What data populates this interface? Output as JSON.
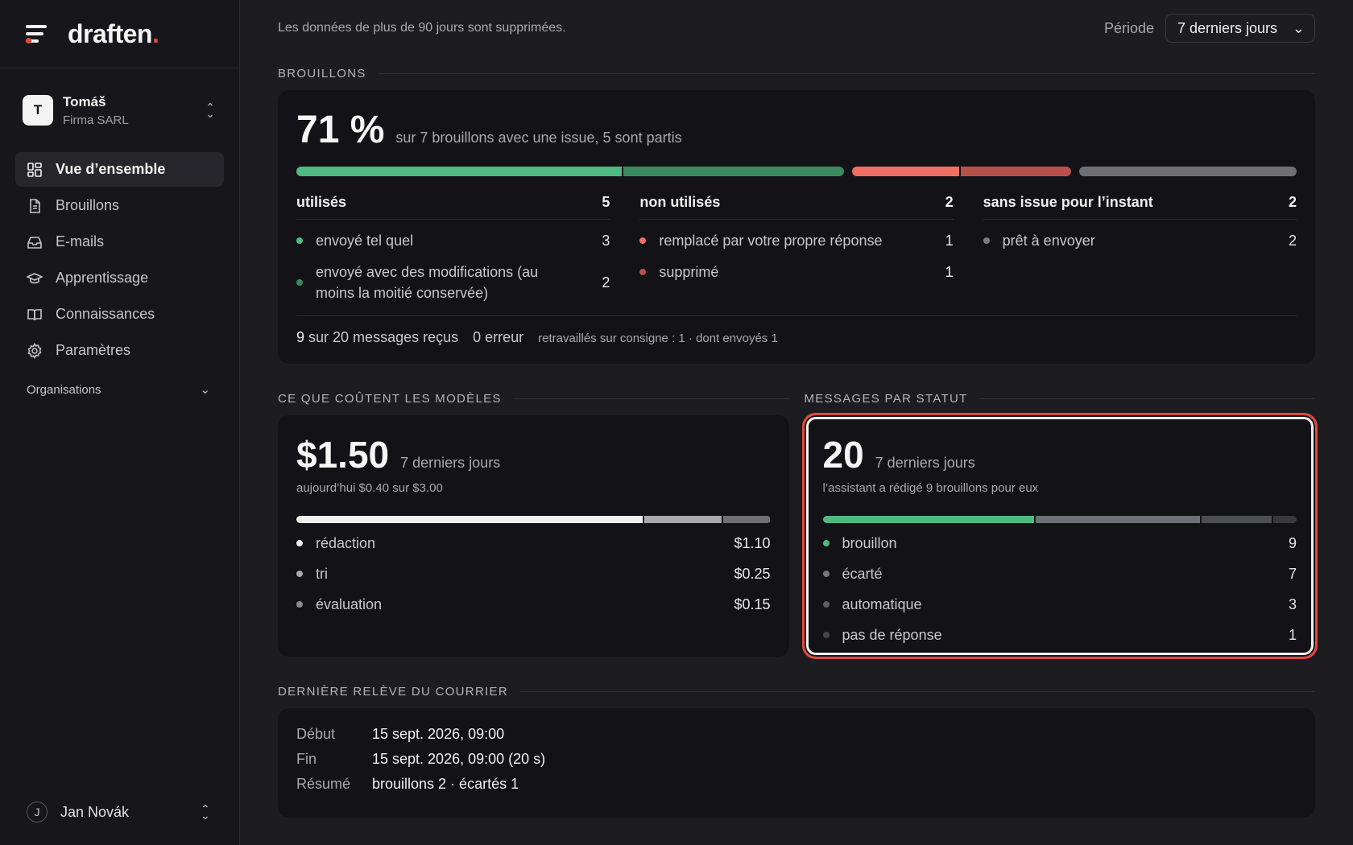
{
  "brand": {
    "name": "draften",
    "dot": "."
  },
  "account": {
    "initial": "T",
    "name": "Tomáš",
    "org": "Firma SARL"
  },
  "nav": [
    {
      "label": "Vue d’ensemble",
      "icon": "dashboard-icon",
      "active": true
    },
    {
      "label": "Brouillons",
      "icon": "document-icon"
    },
    {
      "label": "E-mails",
      "icon": "inbox-icon"
    },
    {
      "label": "Apprentissage",
      "icon": "graduation-cap-icon"
    },
    {
      "label": "Connaissances",
      "icon": "book-icon"
    },
    {
      "label": "Paramètres",
      "icon": "gear-icon"
    }
  ],
  "orgs_label": "Organisations",
  "bottom_user": {
    "initial": "J",
    "name": "Jan Novák"
  },
  "topbar": {
    "retention": "Les données de plus de 90 jours sont supprimées.",
    "period_label": "Période",
    "period_value": "7 derniers jours"
  },
  "drafts": {
    "title": "BROUILLONS",
    "percent": "71 %",
    "summary": "sur 7 brouillons avec une issue, 5 sont partis",
    "bar": [
      {
        "fraction": 0.3286,
        "color": "#4fb97f"
      },
      {
        "fraction": 0.2143,
        "color": "#3a8a5e"
      },
      {
        "fraction": 0.1071,
        "color": "#ef6f65"
      },
      {
        "fraction": 0.1071,
        "color": "#b8514b"
      },
      {
        "fraction": 0.2143,
        "color": "#6f6f76"
      }
    ],
    "columns": [
      {
        "title": "utilisés",
        "total": "5",
        "rows": [
          {
            "label": "envoyé tel quel",
            "value": "3",
            "color": "#4fb97f"
          },
          {
            "label": "envoyé avec des modifications (au moins la moitié conservée)",
            "value": "2",
            "color": "#3a8a5e"
          }
        ]
      },
      {
        "title": "non utilisés",
        "total": "2",
        "rows": [
          {
            "label": "remplacé par votre propre réponse",
            "value": "1",
            "color": "#ef6f65"
          },
          {
            "label": "supprimé",
            "value": "1",
            "color": "#b8514b"
          }
        ]
      },
      {
        "title": "sans issue pour l’instant",
        "total": "2",
        "rows": [
          {
            "label": "prêt à envoyer",
            "value": "2",
            "color": "#7a7a80"
          }
        ]
      }
    ],
    "footer": {
      "count": "9",
      "count_rest": "sur 20 messages reçus",
      "errors": "0 erreur",
      "reworked": "retravaillés sur consigne : 1 · dont envoyés 1"
    }
  },
  "costs": {
    "title": "CE QUE COÛTENT LES MODÈLES",
    "total": "$1.50",
    "period": "7 derniers jours",
    "today": "aujourd’hui $0.40 sur $3.00",
    "bar": [
      {
        "fraction": 0.7333,
        "color": "#f0f0ee"
      },
      {
        "fraction": 0.1667,
        "color": "#a9a9ad"
      },
      {
        "fraction": 0.1,
        "color": "#6f6f75"
      }
    ],
    "rows": [
      {
        "label": "rédaction",
        "value": "$1.10",
        "color": "#f0f0ee"
      },
      {
        "label": "tri",
        "value": "$0.25",
        "color": "#a9a9ad"
      },
      {
        "label": "évaluation",
        "value": "$0.15",
        "color": "#8a8a90"
      }
    ]
  },
  "status": {
    "title": "MESSAGES PAR STATUT",
    "total": "20",
    "period": "7 derniers jours",
    "sub": "l’assistant a rédigé 9 brouillons pour eux",
    "bar": [
      {
        "fraction": 0.45,
        "color": "#4fb97f"
      },
      {
        "fraction": 0.35,
        "color": "#6f6f76"
      },
      {
        "fraction": 0.15,
        "color": "#4e4e55"
      },
      {
        "fraction": 0.05,
        "color": "#38383e"
      }
    ],
    "rows": [
      {
        "label": "brouillon",
        "value": "9",
        "color": "#4fb97f"
      },
      {
        "label": "écarté",
        "value": "7",
        "color": "#77777d"
      },
      {
        "label": "automatique",
        "value": "3",
        "color": "#5c5c62"
      },
      {
        "label": "pas de réponse",
        "value": "1",
        "color": "#45454b"
      }
    ]
  },
  "mail": {
    "title": "DERNIÈRE RELÈVE DU COURRIER",
    "rows": [
      {
        "key": "Début",
        "value": "15 sept. 2026, 09:00"
      },
      {
        "key": "Fin",
        "value": "15 sept. 2026, 09:00 (20 s)"
      },
      {
        "key": "Résumé",
        "value": "brouillons 2 · écartés 1"
      }
    ]
  }
}
